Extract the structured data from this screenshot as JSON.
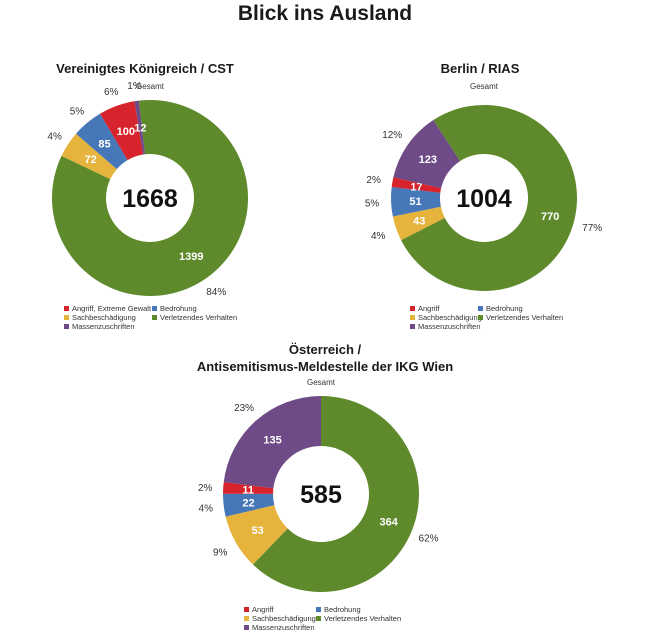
{
  "page": {
    "title": "Blick ins Ausland"
  },
  "colors": {
    "Angriff": "#d7232b",
    "Bedrohung": "#4677b8",
    "Sachbeschädigung": "#e6b33c",
    "Verletzendes Verhalten": "#5e8a2c",
    "Massenzuschriften": "#6e4a86"
  },
  "chart_data": [
    {
      "type": "pie",
      "title": "Vereinigtes Königreich / CST",
      "subtitle": "Gesamt",
      "total": "1668",
      "slices": [
        {
          "name": "Verletzendes Verhalten",
          "value": 1399,
          "label": "1399",
          "percent": "84%"
        },
        {
          "name": "Sachbeschädigung",
          "value": 72,
          "label": "72",
          "percent": "4%"
        },
        {
          "name": "Bedrohung",
          "value": 85,
          "label": "85",
          "percent": "5%"
        },
        {
          "name": "Angriff",
          "value": 100,
          "label": "100",
          "percent": "6%"
        },
        {
          "name": "Massenzuschriften",
          "value": 12,
          "label": "12",
          "percent": "1%"
        }
      ],
      "legend": [
        {
          "key": "Angriff",
          "label": "Angriff, Extreme Gewalt"
        },
        {
          "key": "Bedrohung",
          "label": "Bedrohung"
        },
        {
          "key": "Sachbeschädigung",
          "label": "Sachbeschädigung"
        },
        {
          "key": "Verletzendes Verhalten",
          "label": "Verletzendes Verhalten"
        },
        {
          "key": "Massenzuschriften",
          "label": "Massenzuschriften"
        }
      ]
    },
    {
      "type": "pie",
      "title": "Berlin / RIAS",
      "subtitle": "Gesamt",
      "total": "1004",
      "slices": [
        {
          "name": "Verletzendes Verhalten",
          "value": 770,
          "label": "770",
          "percent": "77%"
        },
        {
          "name": "Sachbeschädigung",
          "value": 43,
          "label": "43",
          "percent": "4%"
        },
        {
          "name": "Bedrohung",
          "value": 51,
          "label": "51",
          "percent": "5%"
        },
        {
          "name": "Angriff",
          "value": 17,
          "label": "17",
          "percent": "2%"
        },
        {
          "name": "Massenzuschriften",
          "value": 123,
          "label": "123",
          "percent": "12%"
        }
      ],
      "legend": [
        {
          "key": "Angriff",
          "label": "Angriff"
        },
        {
          "key": "Bedrohung",
          "label": "Bedrohung"
        },
        {
          "key": "Sachbeschädigung",
          "label": "Sachbeschädigung"
        },
        {
          "key": "Verletzendes Verhalten",
          "label": "Verletzendes Verhalten"
        },
        {
          "key": "Massenzuschriften",
          "label": "Massenzuschriften"
        }
      ]
    },
    {
      "type": "pie",
      "title": "Österreich /\nAntisemitismus-Meldestelle der IKG Wien",
      "subtitle": "Gesamt",
      "total": "585",
      "slices": [
        {
          "name": "Verletzendes Verhalten",
          "value": 364,
          "label": "364",
          "percent": "62%"
        },
        {
          "name": "Sachbeschädigung",
          "value": 53,
          "label": "53",
          "percent": "9%"
        },
        {
          "name": "Bedrohung",
          "value": 22,
          "label": "22",
          "percent": "4%"
        },
        {
          "name": "Angriff",
          "value": 11,
          "label": "11",
          "percent": "2%"
        },
        {
          "name": "Massenzuschriften",
          "value": 135,
          "label": "135",
          "percent": "23%"
        }
      ],
      "legend": [
        {
          "key": "Angriff",
          "label": "Angriff"
        },
        {
          "key": "Bedrohung",
          "label": "Bedrohung"
        },
        {
          "key": "Sachbeschädigung",
          "label": "Sachbeschädigung"
        },
        {
          "key": "Verletzendes Verhalten",
          "label": "Verletzendes Verhalten"
        },
        {
          "key": "Massenzuschriften",
          "label": "Massenzuschriften"
        }
      ]
    }
  ]
}
